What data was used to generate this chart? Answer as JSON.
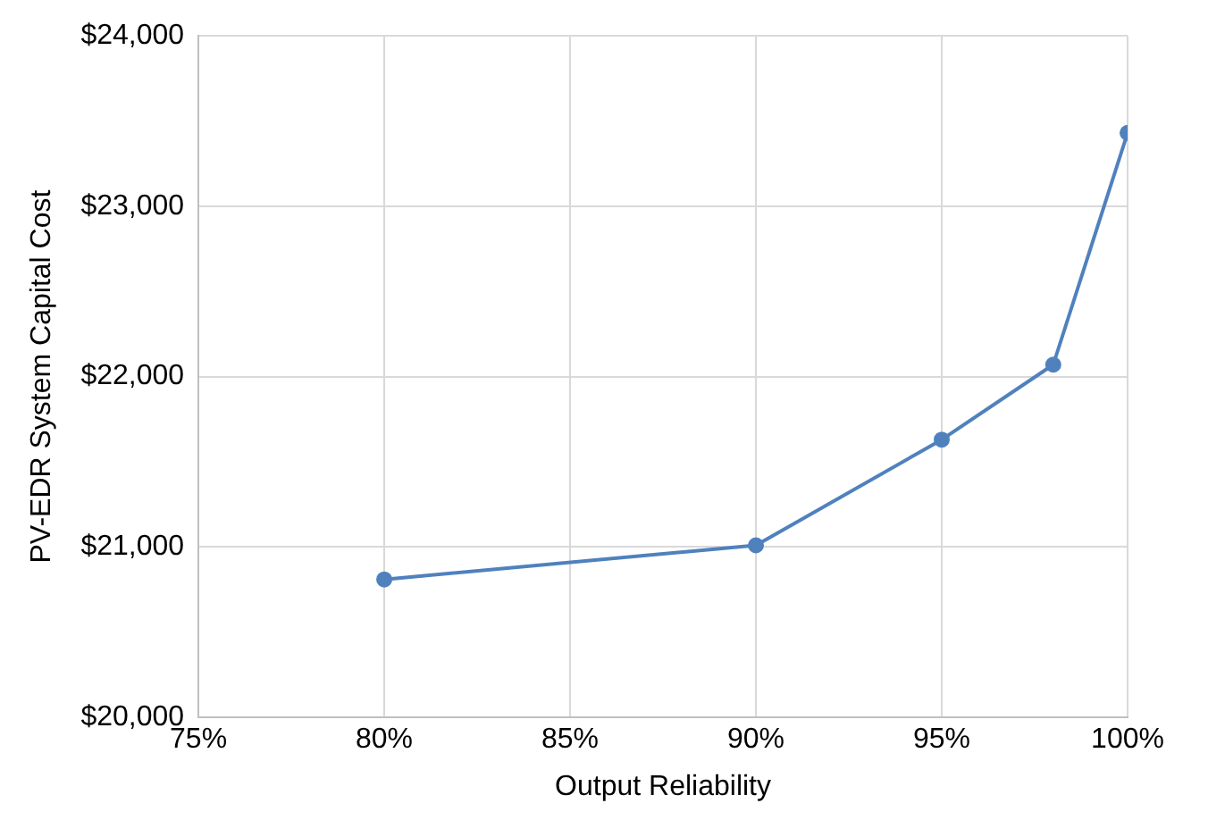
{
  "chart_data": {
    "type": "line",
    "xlabel": "Output Reliability",
    "ylabel": "PV-EDR System Capital Cost",
    "x": [
      80,
      90,
      95,
      98,
      100
    ],
    "series": [
      {
        "color": "#4f81bd",
        "values": [
          20810,
          21010,
          21630,
          22070,
          23430
        ]
      }
    ],
    "xlim": [
      75,
      100
    ],
    "xticks": [
      {
        "value": 75,
        "label": "75%"
      },
      {
        "value": 80,
        "label": "80%"
      },
      {
        "value": 85,
        "label": "85%"
      },
      {
        "value": 90,
        "label": "90%"
      },
      {
        "value": 95,
        "label": "95%"
      },
      {
        "value": 100,
        "label": "100%"
      }
    ],
    "ylim": [
      20000,
      24000
    ],
    "yticks": [
      {
        "value": 20000,
        "label": "$20,000"
      },
      {
        "value": 21000,
        "label": "$21,000"
      },
      {
        "value": 22000,
        "label": "$22,000"
      },
      {
        "value": 23000,
        "label": "$23,000"
      },
      {
        "value": 24000,
        "label": "$24,000"
      }
    ],
    "grid": true,
    "marker": "circle",
    "line_style": "solid",
    "legend": false
  }
}
